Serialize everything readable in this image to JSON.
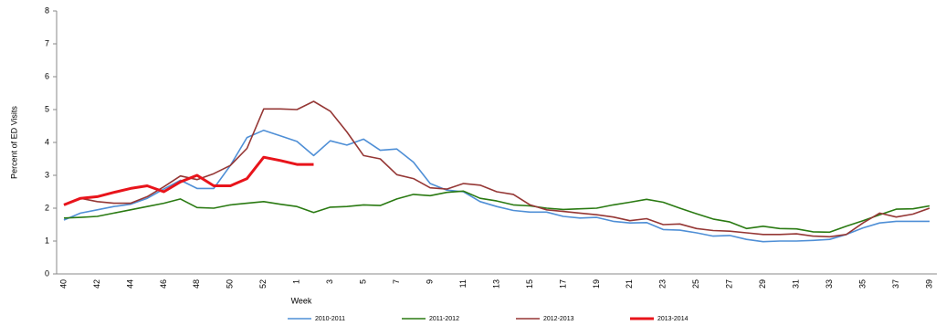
{
  "chart_data": {
    "type": "line",
    "x_label": "Week",
    "y_label": "Percent of ED Visits",
    "categories": [
      "40",
      null,
      "42",
      null,
      "44",
      null,
      "46",
      null,
      "48",
      null,
      "50",
      null,
      "52",
      null,
      "1",
      null,
      "3",
      null,
      "5",
      null,
      "7",
      null,
      "9",
      null,
      "11",
      null,
      "13",
      null,
      "15",
      null,
      "17",
      null,
      "19",
      null,
      "21",
      null,
      "23",
      null,
      "25",
      null,
      "27",
      null,
      "29",
      null,
      "31",
      null,
      "33",
      null,
      "35",
      null,
      "37",
      null,
      "39"
    ],
    "ylim": [
      0,
      8
    ],
    "yticks": [
      0,
      1,
      2,
      3,
      4,
      5,
      6,
      7,
      8
    ],
    "legend": "bottom",
    "series": [
      {
        "name": "2010-2011",
        "color": "#4f8fd6",
        "width": 1.6,
        "values": [
          1.64,
          1.85,
          1.95,
          2.05,
          2.12,
          2.3,
          2.58,
          2.85,
          2.6,
          2.6,
          3.3,
          4.15,
          4.37,
          4.2,
          4.03,
          3.6,
          4.05,
          3.92,
          4.1,
          3.76,
          3.8,
          3.4,
          2.75,
          2.55,
          2.5,
          2.2,
          2.05,
          1.93,
          1.88,
          1.88,
          1.75,
          1.7,
          1.72,
          1.6,
          1.55,
          1.56,
          1.35,
          1.33,
          1.25,
          1.15,
          1.17,
          1.05,
          0.98,
          1.0,
          1.0,
          1.02,
          1.05,
          1.2,
          1.4,
          1.55,
          1.6,
          1.6,
          1.6
        ]
      },
      {
        "name": "2011-2012",
        "color": "#2a7a12",
        "width": 1.6,
        "values": [
          1.7,
          1.72,
          1.75,
          1.85,
          1.95,
          2.05,
          2.15,
          2.28,
          2.02,
          2.0,
          2.1,
          2.15,
          2.2,
          2.12,
          2.05,
          1.87,
          2.03,
          2.05,
          2.1,
          2.08,
          2.28,
          2.42,
          2.38,
          2.48,
          2.52,
          2.3,
          2.22,
          2.1,
          2.07,
          2.0,
          1.96,
          1.98,
          2.0,
          2.1,
          2.18,
          2.27,
          2.18,
          2.0,
          1.83,
          1.67,
          1.58,
          1.38,
          1.45,
          1.38,
          1.37,
          1.28,
          1.27,
          1.45,
          1.62,
          1.8,
          1.97,
          1.98,
          2.07
        ]
      },
      {
        "name": "2012-2013",
        "color": "#953735",
        "width": 1.6,
        "values": [
          2.1,
          2.3,
          2.2,
          2.15,
          2.15,
          2.35,
          2.65,
          2.98,
          2.87,
          3.05,
          3.3,
          3.82,
          5.02,
          5.02,
          5.0,
          5.25,
          4.95,
          4.32,
          3.6,
          3.5,
          3.02,
          2.9,
          2.62,
          2.58,
          2.75,
          2.7,
          2.5,
          2.42,
          2.1,
          1.95,
          1.9,
          1.85,
          1.8,
          1.73,
          1.62,
          1.68,
          1.5,
          1.52,
          1.38,
          1.32,
          1.3,
          1.25,
          1.2,
          1.2,
          1.22,
          1.15,
          1.13,
          1.2,
          1.55,
          1.85,
          1.73,
          1.82,
          2.0
        ]
      },
      {
        "name": "2013-2014",
        "color": "#e8141b",
        "width": 3,
        "values": [
          2.1,
          2.3,
          2.35,
          2.48,
          2.6,
          2.68,
          2.5,
          2.8,
          3.0,
          2.68,
          2.68,
          2.9,
          3.55,
          3.45,
          3.33,
          3.33,
          null,
          null,
          null,
          null,
          null,
          null,
          null,
          null,
          null,
          null,
          null,
          null,
          null,
          null,
          null,
          null,
          null,
          null,
          null,
          null,
          null,
          null,
          null,
          null,
          null,
          null,
          null,
          null,
          null,
          null,
          null,
          null,
          null,
          null,
          null,
          null,
          null
        ]
      }
    ]
  }
}
